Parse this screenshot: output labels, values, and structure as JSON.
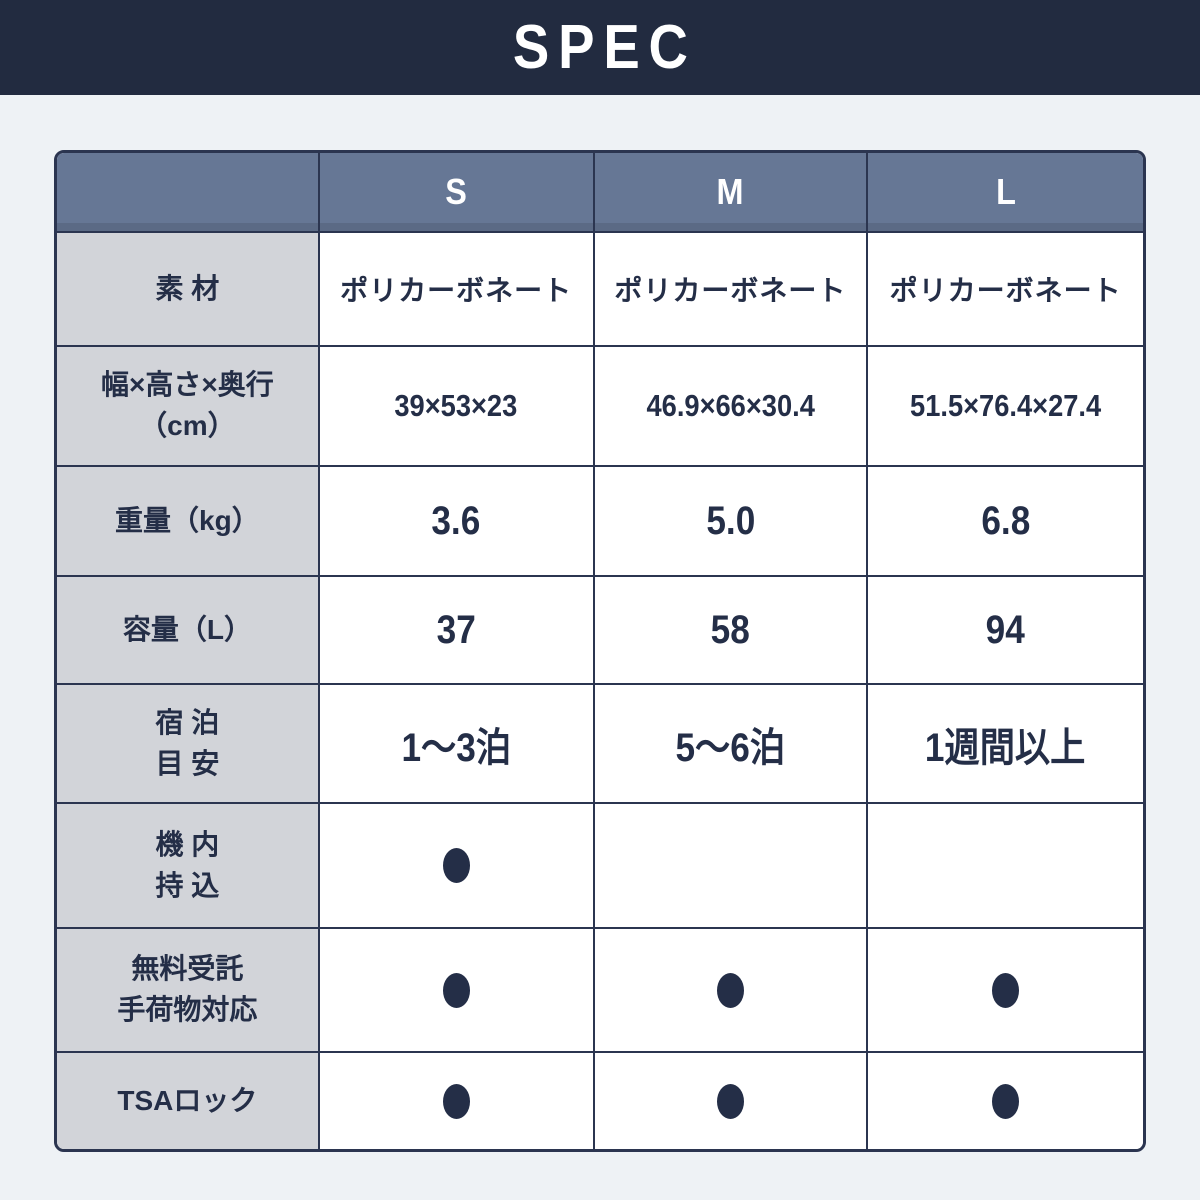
{
  "banner": {
    "title": "SPEC"
  },
  "table": {
    "columns": [
      "S",
      "M",
      "L"
    ],
    "rows": [
      {
        "label_lines": [
          "素 材"
        ],
        "values": [
          "ポリカーボネート",
          "ポリカーボネート",
          "ポリカーボネート"
        ]
      },
      {
        "label_lines": [
          "幅×高さ×奥行",
          "（cm）"
        ],
        "values": [
          "39×53×23",
          "46.9×66×30.4",
          "51.5×76.4×27.4"
        ]
      },
      {
        "label_lines": [
          "重量（kg）"
        ],
        "values": [
          "3.6",
          "5.0",
          "6.8"
        ]
      },
      {
        "label_lines": [
          "容量（L）"
        ],
        "values": [
          "37",
          "58",
          "94"
        ]
      },
      {
        "label_lines": [
          "宿 泊",
          "目 安"
        ],
        "values": [
          "1〜3泊",
          "5〜6泊",
          "1週間以上"
        ]
      },
      {
        "label_lines": [
          "機 内",
          "持 込"
        ],
        "checks": [
          true,
          false,
          false
        ]
      },
      {
        "label_lines": [
          "無料受託",
          "手荷物対応"
        ],
        "checks": [
          true,
          true,
          true
        ]
      },
      {
        "label_lines": [
          "TSAロック"
        ],
        "checks": [
          true,
          true,
          true
        ]
      }
    ]
  },
  "colors": {
    "banner_bg": "#222b40",
    "header_bg": "#667795",
    "label_bg": "#d2d4d9",
    "cell_bg": "#ffffff",
    "page_bg": "#eef2f5",
    "border": "#2b3550",
    "text": "#242e47",
    "header_text": "#ffffff"
  }
}
